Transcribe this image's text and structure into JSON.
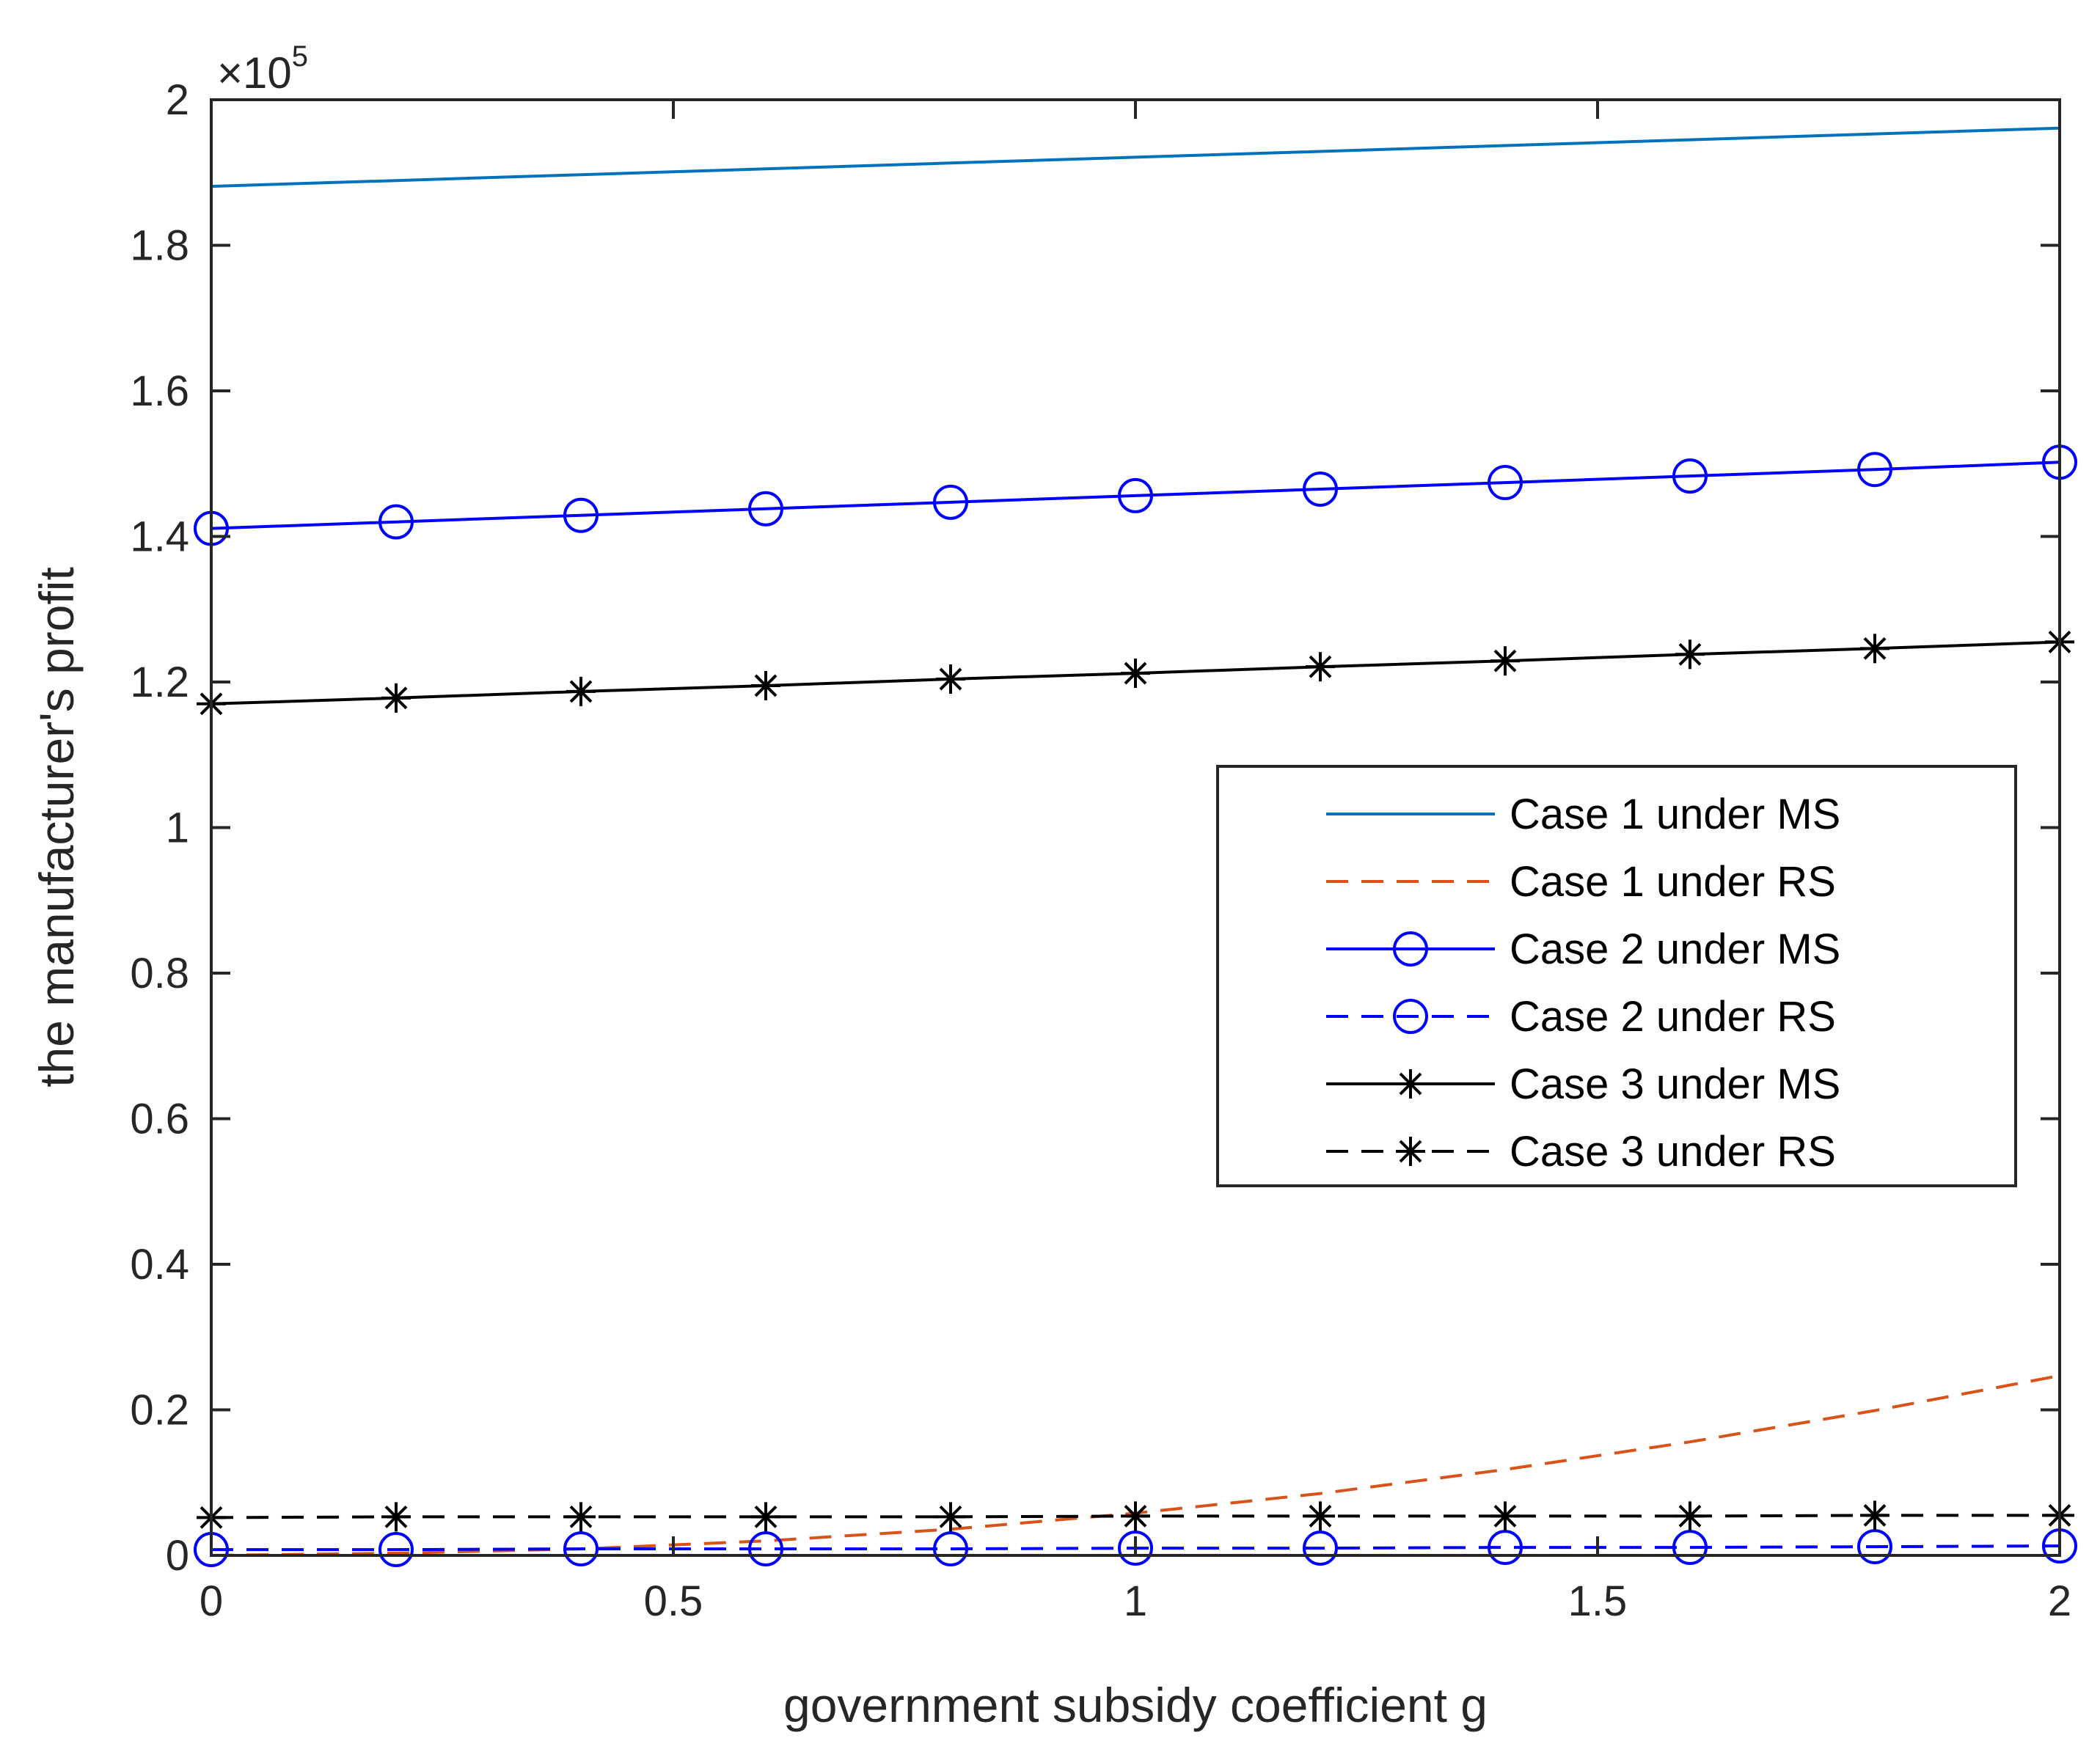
{
  "chart_data": {
    "type": "line",
    "title": "",
    "xlabel": "government subsidy coefficient g",
    "ylabel": "the manufacturer's profit",
    "xlim": [
      0,
      2
    ],
    "ylim": [
      0,
      2
    ],
    "y_multiplier": {
      "times": "×10",
      "exponent": "5"
    },
    "xticks": [
      0,
      0.5,
      1,
      1.5,
      2
    ],
    "xtick_labels": [
      "0",
      "0.5",
      "1",
      "1.5",
      "2"
    ],
    "yticks": [
      0,
      0.2,
      0.4,
      0.6,
      0.8,
      1,
      1.2,
      1.4,
      1.6,
      1.8,
      2
    ],
    "ytick_labels": [
      "0",
      "0.2",
      "0.4",
      "0.6",
      "0.8",
      "1",
      "1.2",
      "1.4",
      "1.6",
      "1.8",
      "2"
    ],
    "grid": false,
    "legend_position": "right-middle",
    "series": [
      {
        "name": "Case 1 under MS",
        "color": "#0072BD",
        "dash": "solid",
        "marker": "none",
        "x": [
          0,
          0.2,
          0.4,
          0.6,
          0.8,
          1.0,
          1.2,
          1.4,
          1.6,
          1.8,
          2.0
        ],
        "y": [
          1.881,
          1.889,
          1.897,
          1.905,
          1.913,
          1.921,
          1.929,
          1.937,
          1.945,
          1.953,
          1.961
        ]
      },
      {
        "name": "Case 1 under RS",
        "color": "#D95319",
        "dash": "dashed",
        "marker": "none",
        "x": [
          0,
          0.2,
          0.4,
          0.6,
          0.8,
          1.0,
          1.2,
          1.4,
          1.6,
          1.8,
          2.0
        ],
        "y": [
          0.0,
          0.003,
          0.009,
          0.02,
          0.036,
          0.058,
          0.085,
          0.118,
          0.156,
          0.199,
          0.247
        ]
      },
      {
        "name": "Case 2 under MS",
        "color": "#0000FF",
        "dash": "solid",
        "marker": "circle",
        "x": [
          0,
          0.2,
          0.4,
          0.6,
          0.8,
          1.0,
          1.2,
          1.4,
          1.6,
          1.8,
          2.0
        ],
        "y": [
          1.411,
          1.42,
          1.429,
          1.438,
          1.447,
          1.456,
          1.465,
          1.474,
          1.483,
          1.492,
          1.502
        ]
      },
      {
        "name": "Case 2 under RS",
        "color": "#0000FF",
        "dash": "dashed",
        "marker": "circle",
        "x": [
          0,
          0.2,
          0.4,
          0.6,
          0.8,
          1.0,
          1.2,
          1.4,
          1.6,
          1.8,
          2.0
        ],
        "y": [
          0.008,
          0.008,
          0.009,
          0.009,
          0.009,
          0.01,
          0.01,
          0.011,
          0.011,
          0.012,
          0.013
        ]
      },
      {
        "name": "Case 3 under MS",
        "color": "#000000",
        "dash": "solid",
        "marker": "asterisk",
        "x": [
          0,
          0.2,
          0.4,
          0.6,
          0.8,
          1.0,
          1.2,
          1.4,
          1.6,
          1.8,
          2.0
        ],
        "y": [
          1.17,
          1.178,
          1.187,
          1.195,
          1.204,
          1.212,
          1.221,
          1.229,
          1.238,
          1.246,
          1.255
        ]
      },
      {
        "name": "Case 3 under RS",
        "color": "#000000",
        "dash": "dashed",
        "marker": "asterisk",
        "x": [
          0,
          0.2,
          0.4,
          0.6,
          0.8,
          1.0,
          1.2,
          1.4,
          1.6,
          1.8,
          2.0
        ],
        "y": [
          0.052,
          0.053,
          0.053,
          0.053,
          0.053,
          0.054,
          0.054,
          0.054,
          0.054,
          0.055,
          0.055
        ]
      }
    ]
  }
}
